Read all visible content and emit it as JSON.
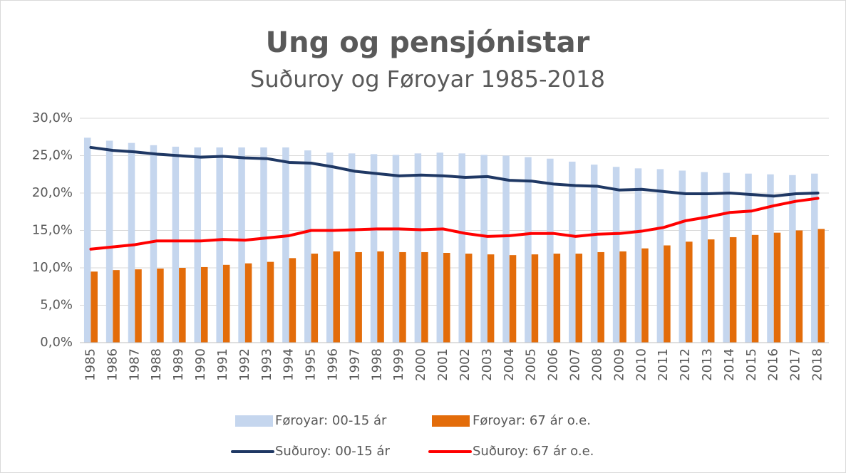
{
  "chart_data": {
    "type": "bar-line",
    "title": "Ung og pensjónistar",
    "subtitle": "Suðuroy og Føroyar 1985-2018",
    "categories": [
      "1985",
      "1986",
      "1987",
      "1988",
      "1989",
      "1990",
      "1991",
      "1992",
      "1993",
      "1994",
      "1995",
      "1996",
      "1997",
      "1998",
      "1999",
      "2000",
      "2001",
      "2002",
      "2003",
      "2004",
      "2005",
      "2006",
      "2007",
      "2008",
      "2009",
      "2010",
      "2011",
      "2012",
      "2013",
      "2014",
      "2015",
      "2016",
      "2017",
      "2018"
    ],
    "series": [
      {
        "name": "Føroyar: 00-15 ár",
        "kind": "bar",
        "color": "#c5d6ee",
        "values": [
          27.4,
          27.0,
          26.7,
          26.4,
          26.2,
          26.1,
          26.1,
          26.1,
          26.1,
          26.1,
          25.7,
          25.4,
          25.3,
          25.2,
          25.1,
          25.3,
          25.4,
          25.3,
          25.1,
          25.0,
          24.8,
          24.6,
          24.2,
          23.8,
          23.5,
          23.3,
          23.2,
          23.0,
          22.8,
          22.7,
          22.6,
          22.5,
          22.4,
          22.6
        ]
      },
      {
        "name": "Føroyar: 67 ár o.e.",
        "kind": "bar",
        "color": "#e36c0a",
        "values": [
          9.5,
          9.7,
          9.8,
          9.9,
          10.0,
          10.1,
          10.4,
          10.6,
          10.8,
          11.3,
          11.9,
          12.2,
          12.1,
          12.2,
          12.1,
          12.1,
          12.0,
          11.9,
          11.8,
          11.7,
          11.8,
          11.9,
          11.9,
          12.1,
          12.2,
          12.6,
          13.0,
          13.5,
          13.8,
          14.1,
          14.4,
          14.7,
          15.0,
          15.2
        ]
      },
      {
        "name": "Suðuroy: 00-15 ár",
        "kind": "line",
        "color": "#1f3864",
        "values": [
          26.1,
          25.7,
          25.5,
          25.2,
          25.0,
          24.8,
          24.9,
          24.7,
          24.6,
          24.1,
          24.0,
          23.5,
          22.9,
          22.6,
          22.3,
          22.4,
          22.3,
          22.1,
          22.2,
          21.7,
          21.6,
          21.2,
          21.0,
          20.9,
          20.4,
          20.5,
          20.2,
          19.9,
          19.9,
          20.0,
          19.8,
          19.6,
          19.9,
          20.0
        ]
      },
      {
        "name": "Suðuroy: 67 ár o.e.",
        "kind": "line",
        "color": "#ff0000",
        "values": [
          12.5,
          12.8,
          13.1,
          13.6,
          13.6,
          13.6,
          13.8,
          13.7,
          14.0,
          14.3,
          15.0,
          15.0,
          15.1,
          15.2,
          15.2,
          15.1,
          15.2,
          14.6,
          14.2,
          14.3,
          14.6,
          14.6,
          14.2,
          14.5,
          14.6,
          14.9,
          15.4,
          16.3,
          16.8,
          17.4,
          17.6,
          18.3,
          18.9,
          19.3
        ]
      }
    ],
    "ylim": [
      0,
      30
    ],
    "yticks": [
      {
        "value": 0,
        "label": "0,0%"
      },
      {
        "value": 5,
        "label": "5,0%"
      },
      {
        "value": 10,
        "label": "10,0%"
      },
      {
        "value": 15,
        "label": "15,0%"
      },
      {
        "value": 20,
        "label": "20,0%"
      },
      {
        "value": 25,
        "label": "25,0%"
      },
      {
        "value": 30,
        "label": "30,0%"
      }
    ],
    "grid": true
  }
}
